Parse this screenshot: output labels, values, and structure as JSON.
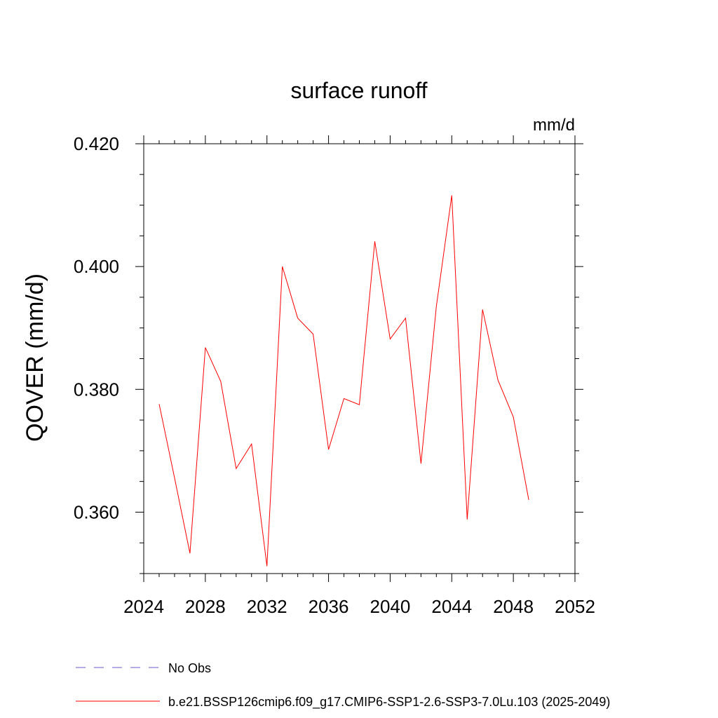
{
  "chart_data": {
    "type": "line",
    "title": "surface runoff",
    "units_label": "mm/d",
    "ylabel": "QOVER  (mm/d)",
    "xlabel": "",
    "xlim": [
      2024,
      2052
    ],
    "ylim": [
      0.35,
      0.42
    ],
    "x_ticks": [
      2024,
      2028,
      2032,
      2036,
      2040,
      2044,
      2048,
      2052
    ],
    "x_tick_labels": [
      "2024",
      "2028",
      "2032",
      "2036",
      "2040",
      "2044",
      "2048",
      "2052"
    ],
    "y_ticks": [
      0.36,
      0.38,
      0.4,
      0.42
    ],
    "y_tick_labels": [
      "0.360",
      "0.380",
      "0.400",
      "0.420"
    ],
    "grid": false,
    "series": [
      {
        "name": "b.e21.BSSP126cmip6.f09_g17.CMIP6-SSP1-2.6-SSP3-7.0Lu.103 (2025-2049)",
        "color": "#ff0000",
        "x": [
          2025,
          2026,
          2027,
          2028,
          2029,
          2030,
          2031,
          2032,
          2033,
          2034,
          2035,
          2036,
          2037,
          2038,
          2039,
          2040,
          2041,
          2042,
          2043,
          2044,
          2045,
          2046,
          2047,
          2048,
          2049
        ],
        "y": [
          0.3776,
          0.3656,
          0.3533,
          0.3868,
          0.3813,
          0.3671,
          0.3711,
          0.3512,
          0.4,
          0.3916,
          0.389,
          0.3702,
          0.3785,
          0.3775,
          0.4041,
          0.3882,
          0.3916,
          0.3679,
          0.3935,
          0.4116,
          0.3588,
          0.393,
          0.3815,
          0.3755,
          0.362
        ]
      }
    ],
    "legend": {
      "position": "bottom",
      "entries": [
        {
          "label": "No Obs",
          "color": "#6a5acd",
          "style": "dashed"
        },
        {
          "label": "b.e21.BSSP126cmip6.f09_g17.CMIP6-SSP1-2.6-SSP3-7.0Lu.103 (2025-2049)",
          "color": "#ff0000",
          "style": "solid"
        }
      ]
    }
  }
}
